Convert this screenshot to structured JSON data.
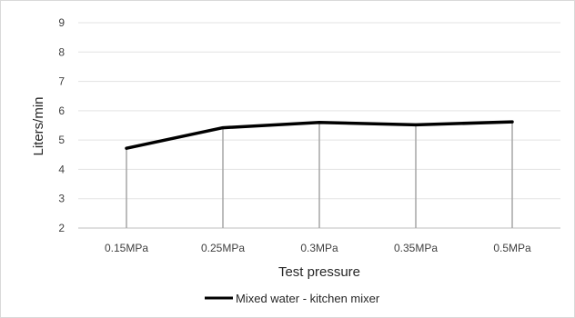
{
  "chart_data": {
    "type": "line",
    "categories": [
      "0.15MPa",
      "0.25MPa",
      "0.3MPa",
      "0.35MPa",
      "0.5MPa"
    ],
    "series": [
      {
        "name": "Mixed water - kitchen mixer",
        "values": [
          4.72,
          5.42,
          5.6,
          5.52,
          5.62
        ],
        "color": "#000000"
      }
    ],
    "title": "",
    "xlabel": "Test pressure",
    "ylabel": "Liters/min",
    "ylim": [
      2,
      9
    ],
    "yticks": [
      2,
      3,
      4,
      5,
      6,
      7,
      8,
      9
    ],
    "grid": true,
    "drop_lines": true,
    "legend_position": "bottom"
  }
}
